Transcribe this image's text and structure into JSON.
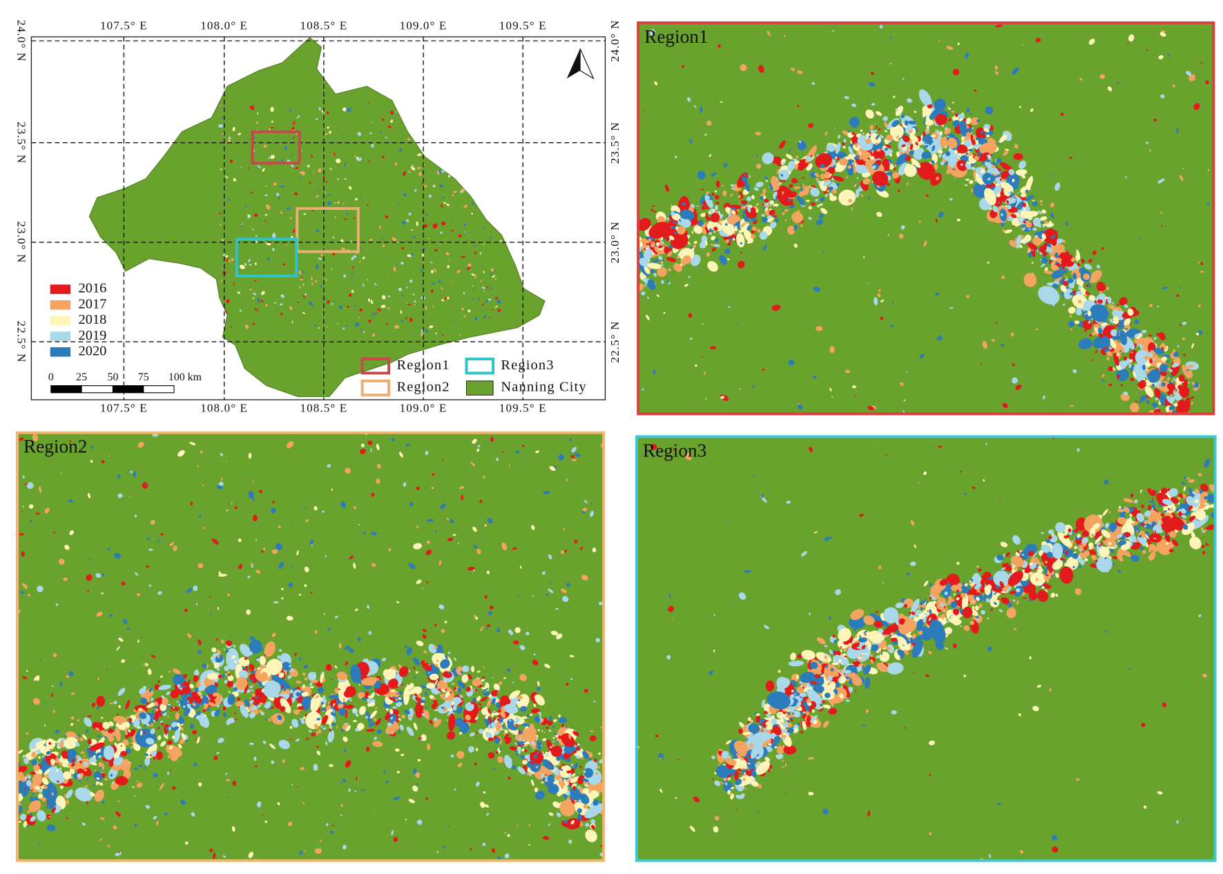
{
  "map": {
    "lon_labels": [
      "107.5° E",
      "108.0° E",
      "108.5° E",
      "109.0° E",
      "109.5° E"
    ],
    "lat_labels": [
      "24.0° N",
      "23.5° N",
      "23.0° N",
      "22.5° N"
    ],
    "year_legend": [
      {
        "label": "2016",
        "color": "#e31a1c"
      },
      {
        "label": "2017",
        "color": "#f4a460"
      },
      {
        "label": "2018",
        "color": "#fff5b8"
      },
      {
        "label": "2019",
        "color": "#a8d8ea"
      },
      {
        "label": "2020",
        "color": "#2c7bbb"
      }
    ],
    "scale_labels": [
      "0",
      "25",
      "50",
      "75",
      "100 km"
    ],
    "region_legend": [
      {
        "label": "Region1",
        "color": "#c9484a"
      },
      {
        "label": "Region3",
        "color": "#2fc4cb"
      },
      {
        "label": "Region2",
        "color": "#eeae72"
      },
      {
        "label": "Nanning City",
        "color": "#6aa22e"
      }
    ]
  },
  "panels": [
    {
      "title": "Region1",
      "border": "#d8413c"
    },
    {
      "title": "Region2",
      "border": "#f2b66a"
    },
    {
      "title": "Region3",
      "border": "#3cc8d4"
    }
  ]
}
